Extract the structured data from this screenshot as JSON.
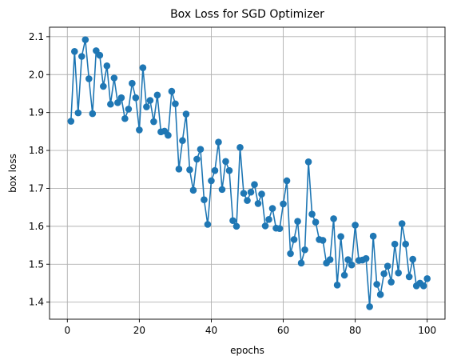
{
  "chart_data": {
    "type": "line",
    "title": "Box Loss for SGD Optimizer",
    "xlabel": "epochs",
    "ylabel": "box loss",
    "xlim": [
      -4.95,
      104.95
    ],
    "ylim": [
      1.355,
      2.125
    ],
    "xticks": [
      0,
      20,
      40,
      60,
      80,
      100
    ],
    "yticks": [
      "1.4",
      "1.5",
      "1.6",
      "1.7",
      "1.8",
      "1.9",
      "2.0",
      "2.1"
    ],
    "grid": true,
    "marker": "circle",
    "color": "#1f77b4",
    "x": [
      1,
      2,
      3,
      4,
      5,
      6,
      7,
      8,
      9,
      10,
      11,
      12,
      13,
      14,
      15,
      16,
      17,
      18,
      19,
      20,
      21,
      22,
      23,
      24,
      25,
      26,
      27,
      28,
      29,
      30,
      31,
      32,
      33,
      34,
      35,
      36,
      37,
      38,
      39,
      40,
      41,
      42,
      43,
      44,
      45,
      46,
      47,
      48,
      49,
      50,
      51,
      52,
      53,
      54,
      55,
      56,
      57,
      58,
      59,
      60,
      61,
      62,
      63,
      64,
      65,
      66,
      67,
      68,
      69,
      70,
      71,
      72,
      73,
      74,
      75,
      76,
      77,
      78,
      79,
      80,
      81,
      82,
      83,
      84,
      85,
      86,
      87,
      88,
      89,
      90,
      91,
      92,
      93,
      94,
      95,
      96,
      97,
      98,
      99,
      100
    ],
    "y": [
      1.877,
      2.061,
      1.899,
      2.048,
      2.092,
      1.989,
      1.897,
      2.063,
      2.051,
      1.969,
      2.023,
      1.922,
      1.991,
      1.926,
      1.939,
      1.884,
      1.909,
      1.977,
      1.939,
      1.854,
      2.018,
      1.915,
      1.932,
      1.876,
      1.946,
      1.849,
      1.851,
      1.84,
      1.956,
      1.923,
      1.751,
      1.826,
      1.896,
      1.749,
      1.695,
      1.777,
      1.803,
      1.67,
      1.605,
      1.72,
      1.747,
      1.822,
      1.697,
      1.771,
      1.747,
      1.615,
      1.6,
      1.808,
      1.687,
      1.668,
      1.69,
      1.71,
      1.66,
      1.685,
      1.601,
      1.618,
      1.647,
      1.595,
      1.594,
      1.659,
      1.72,
      1.528,
      1.565,
      1.613,
      1.503,
      1.538,
      1.77,
      1.632,
      1.611,
      1.565,
      1.563,
      1.503,
      1.512,
      1.62,
      1.445,
      1.573,
      1.471,
      1.512,
      1.498,
      1.603,
      1.51,
      1.511,
      1.515,
      1.388,
      1.574,
      1.447,
      1.42,
      1.475,
      1.495,
      1.453,
      1.553,
      1.477,
      1.607,
      1.553,
      1.467,
      1.513,
      1.443,
      1.45,
      1.443,
      1.462
    ]
  }
}
